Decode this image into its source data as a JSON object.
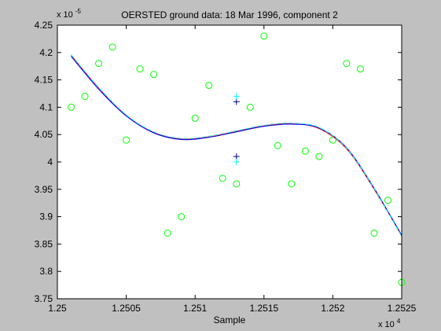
{
  "chart_data": {
    "type": "scatter",
    "title": "OERSTED ground data: 18 Mar 1996, component 2",
    "xlabel": "Sample",
    "ylabel": "",
    "x_exponent_label": "x 10",
    "x_exponent_power": "4",
    "y_exponent_label": "x 10",
    "y_exponent_power": "-5",
    "xlim": [
      1.25,
      1.2525
    ],
    "ylim": [
      3.75,
      4.25
    ],
    "x_ticks": [
      1.25,
      1.2505,
      1.251,
      1.2515,
      1.252,
      1.2525
    ],
    "x_tick_labels": [
      "1.25",
      "1.2505",
      "1.251",
      "1.2515",
      "1.252",
      "1.2525"
    ],
    "y_ticks": [
      3.75,
      3.8,
      3.85,
      3.9,
      3.95,
      4.0,
      4.05,
      4.1,
      4.15,
      4.2,
      4.25
    ],
    "y_tick_labels": [
      "3.75",
      "3.8",
      "3.85",
      "3.9",
      "3.95",
      "4",
      "4.05",
      "4.1",
      "4.15",
      "4.2",
      "4.25"
    ],
    "grid": false,
    "background_color": "#ffffff",
    "figure_color": "#c0c0c0",
    "series": [
      {
        "kind": "markers",
        "marker": "circle",
        "color": "#00ff00",
        "points": [
          [
            1.2501,
            4.1
          ],
          [
            1.2502,
            4.12
          ],
          [
            1.2503,
            4.18
          ],
          [
            1.2504,
            4.21
          ],
          [
            1.2505,
            4.04
          ],
          [
            1.2506,
            4.17
          ],
          [
            1.2507,
            4.16
          ],
          [
            1.2508,
            3.87
          ],
          [
            1.2509,
            3.9
          ],
          [
            1.251,
            4.08
          ],
          [
            1.2511,
            4.14
          ],
          [
            1.2512,
            3.97
          ],
          [
            1.2513,
            3.96
          ],
          [
            1.2514,
            4.1
          ],
          [
            1.2515,
            4.23
          ],
          [
            1.2516,
            4.03
          ],
          [
            1.2517,
            3.96
          ],
          [
            1.2518,
            4.02
          ],
          [
            1.2519,
            4.01
          ],
          [
            1.252,
            4.04
          ],
          [
            1.2521,
            4.18
          ],
          [
            1.2522,
            4.17
          ],
          [
            1.2523,
            3.87
          ],
          [
            1.2524,
            3.93
          ],
          [
            1.2525,
            3.78
          ]
        ]
      },
      {
        "kind": "line",
        "style": "solid",
        "color": "#ff0000",
        "points": [
          [
            1.2501,
            4.195
          ],
          [
            1.2503,
            4.135
          ],
          [
            1.2505,
            4.085
          ],
          [
            1.2507,
            4.054
          ],
          [
            1.2509,
            4.042
          ],
          [
            1.2511,
            4.046
          ],
          [
            1.2513,
            4.056
          ],
          [
            1.2515,
            4.066
          ],
          [
            1.2517,
            4.07
          ],
          [
            1.2519,
            4.061
          ],
          [
            1.2521,
            4.024
          ],
          [
            1.2523,
            3.95
          ],
          [
            1.2525,
            3.865
          ]
        ]
      },
      {
        "kind": "line",
        "style": "solid",
        "color": "#0000ff",
        "points": [
          [
            1.2501,
            4.193
          ],
          [
            1.2503,
            4.133
          ],
          [
            1.2505,
            4.084
          ],
          [
            1.2507,
            4.053
          ],
          [
            1.2509,
            4.041
          ],
          [
            1.2511,
            4.045
          ],
          [
            1.2513,
            4.055
          ],
          [
            1.2515,
            4.065
          ],
          [
            1.2517,
            4.069
          ],
          [
            1.2519,
            4.062
          ],
          [
            1.2521,
            4.026
          ],
          [
            1.2523,
            3.952
          ],
          [
            1.2525,
            3.866
          ]
        ]
      },
      {
        "kind": "line",
        "style": "dashed",
        "color": "#00ffff",
        "points": [
          [
            1.2501,
            4.196
          ],
          [
            1.2503,
            4.136
          ],
          [
            1.2505,
            4.086
          ],
          [
            1.2507,
            4.055
          ],
          [
            1.2509,
            4.043
          ],
          [
            1.2511,
            4.047
          ],
          [
            1.2513,
            4.057
          ],
          [
            1.2515,
            4.067
          ],
          [
            1.2517,
            4.071
          ],
          [
            1.2519,
            4.063
          ],
          [
            1.2521,
            4.025
          ],
          [
            1.2523,
            3.951
          ],
          [
            1.2525,
            3.864
          ]
        ]
      },
      {
        "kind": "markers",
        "marker": "plus",
        "color": "#000080",
        "points": [
          [
            1.2513,
            4.11
          ],
          [
            1.2513,
            4.01
          ]
        ]
      },
      {
        "kind": "markers",
        "marker": "plus",
        "color": "#00ffff",
        "points": [
          [
            1.2513,
            4.12
          ],
          [
            1.2513,
            4.0
          ]
        ]
      }
    ]
  }
}
